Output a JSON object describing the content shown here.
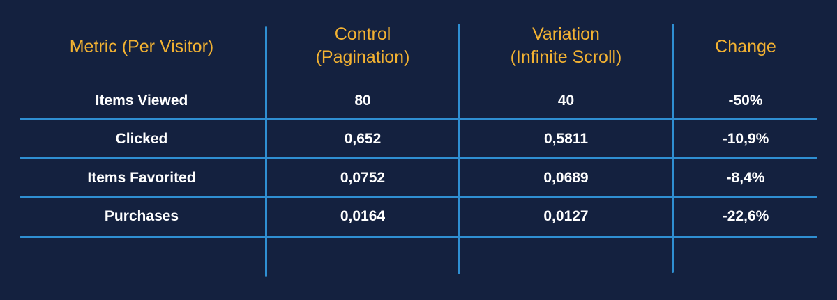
{
  "table": {
    "headers": {
      "metric": "Metric (Per Visitor)",
      "control_line1": "Control",
      "control_line2": "(Pagination)",
      "variation_line1": "Variation",
      "variation_line2": "(Infinite Scroll)",
      "change": "Change"
    },
    "rows": [
      {
        "metric": "Items Viewed",
        "control": "80",
        "variation": "40",
        "change": "-50%"
      },
      {
        "metric": "Clicked",
        "control": "0,652",
        "variation": "0,5811",
        "change": "-10,9%"
      },
      {
        "metric": "Items Favorited",
        "control": "0,0752",
        "variation": "0,0689",
        "change": "-8,4%"
      },
      {
        "metric": "Purchases",
        "control": "0,0164",
        "variation": "0,0127",
        "change": "-22,6%"
      }
    ]
  },
  "colors": {
    "background": "#14213f",
    "header_text": "#f3b232",
    "body_text": "#ffffff",
    "grid_lines": "#2f8fd2"
  }
}
